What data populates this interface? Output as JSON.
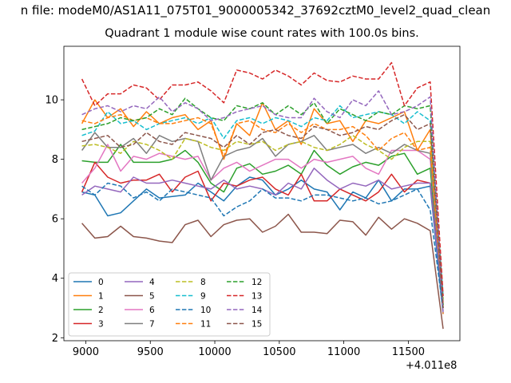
{
  "chart_data": {
    "type": "line",
    "suptitle": "n file: modeM0/AS1A11_075T01_9000005342_37692cztM0_level2_quad_clean",
    "title": "Quadrant 1 module wise count rates with 100.0s bins.",
    "xlabel": "",
    "ylabel": "",
    "x_offset_label": "+4.011e8",
    "xlim": [
      8830,
      11900
    ],
    "ylim": [
      1.9,
      11.8
    ],
    "x_ticks": [
      9000,
      9500,
      10000,
      10500,
      11000,
      11500
    ],
    "y_ticks": [
      2,
      4,
      6,
      8,
      10
    ],
    "grid": false,
    "legend_position": "lower-left",
    "x": [
      8970,
      9070,
      9170,
      9270,
      9370,
      9470,
      9570,
      9670,
      9770,
      9870,
      9970,
      10070,
      10170,
      10270,
      10370,
      10470,
      10570,
      10670,
      10770,
      10870,
      10970,
      11070,
      11170,
      11270,
      11370,
      11470,
      11570,
      11670,
      11770
    ],
    "series": [
      {
        "name": "0",
        "color": "#1f77b4",
        "dash": "solid",
        "values": [
          6.9,
          6.8,
          6.1,
          6.2,
          6.6,
          7.0,
          6.7,
          6.75,
          6.8,
          7.2,
          6.9,
          6.6,
          7.1,
          7.4,
          7.3,
          6.8,
          7.0,
          7.3,
          7.0,
          6.9,
          6.3,
          6.9,
          6.7,
          7.3,
          6.6,
          7.0,
          7.0,
          7.1,
          2.8
        ]
      },
      {
        "name": "1",
        "color": "#ff7f0e",
        "dash": "solid",
        "values": [
          9.2,
          10.0,
          9.4,
          9.7,
          9.1,
          9.6,
          9.2,
          9.4,
          9.5,
          9.0,
          9.3,
          8.0,
          9.2,
          8.8,
          9.9,
          9.0,
          9.3,
          8.5,
          9.7,
          9.2,
          9.3,
          8.6,
          9.3,
          9.2,
          9.4,
          9.6,
          8.3,
          9.0,
          2.8
        ]
      },
      {
        "name": "2",
        "color": "#2ca02c",
        "dash": "solid",
        "values": [
          7.95,
          7.9,
          7.9,
          8.5,
          7.9,
          7.9,
          7.9,
          8.0,
          8.3,
          7.9,
          7.2,
          6.9,
          7.7,
          7.85,
          7.5,
          7.6,
          7.8,
          7.5,
          8.3,
          7.8,
          7.5,
          7.75,
          7.9,
          7.8,
          8.1,
          8.2,
          7.5,
          7.7,
          3.0
        ]
      },
      {
        "name": "3",
        "color": "#d62728",
        "dash": "solid",
        "values": [
          6.9,
          7.9,
          7.4,
          7.2,
          7.3,
          7.3,
          7.5,
          6.9,
          7.4,
          7.6,
          6.6,
          7.2,
          7.1,
          7.3,
          7.4,
          7.0,
          6.8,
          7.5,
          6.6,
          6.6,
          7.0,
          6.8,
          6.6,
          6.9,
          7.5,
          6.9,
          7.3,
          7.2,
          3.2
        ]
      },
      {
        "name": "4",
        "color": "#9467bd",
        "dash": "solid",
        "values": [
          6.8,
          7.1,
          7.0,
          6.9,
          7.4,
          7.2,
          7.2,
          7.3,
          7.2,
          7.1,
          7.0,
          7.3,
          7.0,
          7.1,
          7.0,
          6.8,
          7.2,
          7.0,
          7.7,
          7.3,
          7.0,
          7.2,
          7.1,
          7.3,
          7.0,
          7.1,
          7.2,
          7.2,
          3.1
        ]
      },
      {
        "name": "5",
        "color": "#8c564b",
        "dash": "solid",
        "values": [
          5.85,
          5.35,
          5.4,
          5.75,
          5.4,
          5.35,
          5.25,
          5.2,
          5.8,
          5.95,
          5.4,
          5.8,
          5.95,
          6.0,
          5.55,
          5.75,
          6.15,
          5.55,
          5.55,
          5.5,
          5.95,
          5.9,
          5.45,
          6.05,
          5.65,
          6.0,
          5.85,
          5.6,
          2.3
        ]
      },
      {
        "name": "6",
        "color": "#e377c2",
        "dash": "solid",
        "values": [
          7.2,
          7.7,
          8.5,
          7.6,
          8.1,
          8.0,
          8.2,
          8.1,
          8.0,
          8.1,
          7.3,
          7.7,
          7.9,
          7.6,
          7.8,
          8.0,
          8.0,
          7.7,
          8.0,
          7.9,
          8.0,
          8.1,
          7.7,
          7.5,
          8.3,
          8.3,
          8.3,
          8.0,
          3.2
        ]
      },
      {
        "name": "7",
        "color": "#7f7f7f",
        "dash": "solid",
        "values": [
          8.3,
          8.9,
          8.4,
          8.4,
          8.7,
          8.2,
          8.8,
          8.6,
          8.7,
          8.6,
          7.3,
          8.1,
          8.3,
          8.4,
          8.7,
          8.1,
          8.5,
          8.6,
          8.8,
          8.3,
          8.4,
          8.5,
          8.2,
          8.4,
          8.2,
          8.5,
          8.3,
          8.2,
          3.0
        ]
      },
      {
        "name": "8",
        "color": "#bcbd22",
        "dash": "dashed",
        "values": [
          8.45,
          8.5,
          8.4,
          8.2,
          8.6,
          8.5,
          8.3,
          8.0,
          8.7,
          8.6,
          8.4,
          8.3,
          8.6,
          8.5,
          8.6,
          8.3,
          8.5,
          8.6,
          8.4,
          8.3,
          8.5,
          8.8,
          8.5,
          8.3,
          8.0,
          8.4,
          8.6,
          8.6,
          3.3
        ]
      },
      {
        "name": "9",
        "color": "#17becf",
        "dash": "dashed",
        "values": [
          8.8,
          8.95,
          9.6,
          9.2,
          9.3,
          9.0,
          9.2,
          9.3,
          9.4,
          9.2,
          9.4,
          8.7,
          9.3,
          9.4,
          9.2,
          9.4,
          9.3,
          9.1,
          9.4,
          9.3,
          9.8,
          9.4,
          9.5,
          9.6,
          9.5,
          9.2,
          9.6,
          9.3,
          3.4
        ]
      },
      {
        "name": "10",
        "color": "#1f77b4",
        "dash": "dashed",
        "values": [
          7.1,
          6.8,
          7.2,
          7.1,
          6.7,
          6.9,
          6.6,
          7.0,
          6.9,
          6.8,
          6.7,
          6.1,
          6.4,
          6.6,
          7.0,
          6.7,
          6.7,
          6.6,
          6.8,
          6.8,
          6.7,
          6.6,
          6.7,
          6.5,
          6.6,
          6.8,
          7.0,
          6.3,
          2.9
        ]
      },
      {
        "name": "11",
        "color": "#ff7f0e",
        "dash": "dashed",
        "values": [
          9.3,
          9.2,
          9.4,
          9.5,
          9.3,
          9.4,
          9.2,
          9.2,
          9.3,
          9.4,
          9.2,
          8.1,
          9.2,
          9.3,
          9.0,
          8.9,
          9.2,
          8.9,
          9.2,
          9.0,
          9.0,
          9.1,
          8.8,
          8.3,
          8.7,
          8.9,
          8.3,
          8.4,
          3.1
        ]
      },
      {
        "name": "12",
        "color": "#2ca02c",
        "dash": "dashed",
        "values": [
          9.0,
          9.1,
          9.2,
          9.4,
          9.3,
          9.4,
          9.7,
          9.5,
          10.05,
          9.7,
          9.4,
          9.3,
          9.8,
          9.7,
          9.9,
          9.5,
          9.8,
          9.5,
          9.9,
          9.2,
          9.7,
          9.5,
          9.3,
          9.6,
          9.5,
          9.8,
          9.7,
          9.8,
          3.1
        ]
      },
      {
        "name": "13",
        "color": "#d62728",
        "dash": "dashed",
        "values": [
          10.7,
          9.8,
          10.2,
          10.2,
          10.5,
          10.4,
          10.0,
          10.5,
          10.5,
          10.6,
          10.3,
          9.9,
          11.0,
          10.9,
          10.7,
          11.0,
          10.8,
          10.5,
          10.9,
          10.65,
          10.6,
          10.8,
          10.7,
          10.7,
          11.25,
          9.8,
          10.4,
          10.6,
          3.4
        ]
      },
      {
        "name": "14",
        "color": "#9467bd",
        "dash": "dashed",
        "values": [
          9.5,
          9.7,
          9.8,
          9.6,
          9.8,
          9.7,
          10.1,
          9.6,
          9.9,
          9.7,
          9.3,
          9.4,
          9.6,
          9.7,
          9.8,
          9.5,
          9.4,
          9.4,
          10.05,
          9.6,
          9.4,
          10.0,
          9.8,
          10.3,
          9.5,
          9.6,
          9.8,
          10.1,
          2.8
        ]
      },
      {
        "name": "15",
        "color": "#8c564b",
        "dash": "dashed",
        "values": [
          8.6,
          8.7,
          8.8,
          8.4,
          8.5,
          8.9,
          8.6,
          8.5,
          8.9,
          8.8,
          8.7,
          8.4,
          8.8,
          8.5,
          8.9,
          9.0,
          8.8,
          8.7,
          9.1,
          9.0,
          8.8,
          8.9,
          9.1,
          9.0,
          9.3,
          9.5,
          9.0,
          9.2,
          3.0
        ]
      }
    ]
  }
}
